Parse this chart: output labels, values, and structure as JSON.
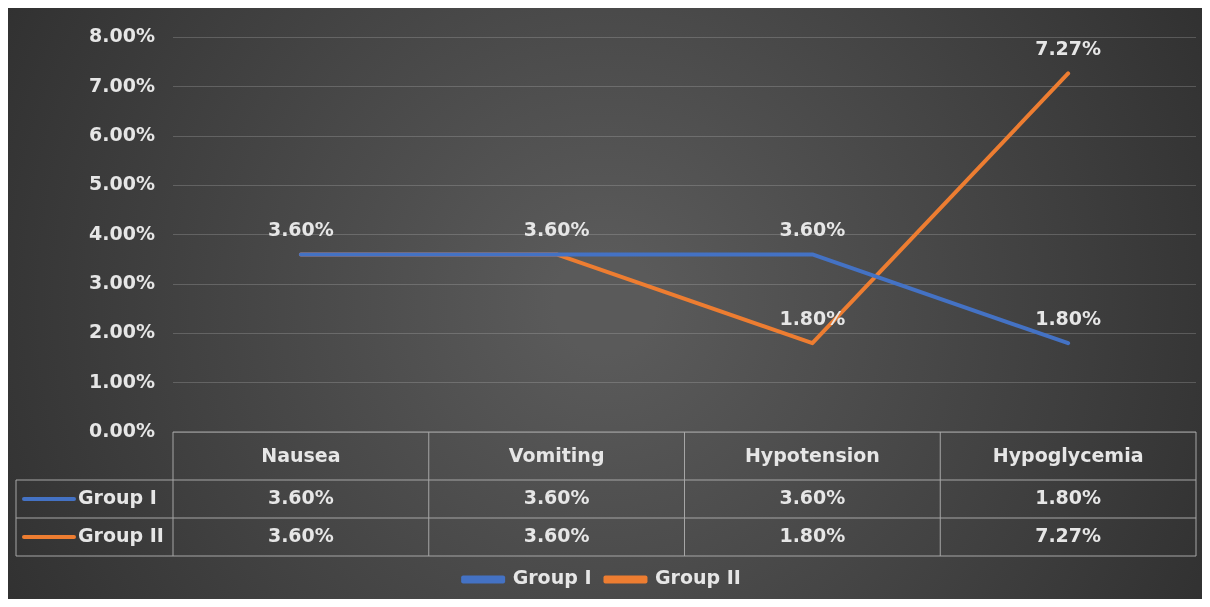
{
  "chart_data": {
    "type": "line",
    "categories": [
      "Nausea",
      "Vomiting",
      "Hypotension",
      "Hypoglycemia"
    ],
    "series": [
      {
        "name": "Group I",
        "color": "#4472c4",
        "values": [
          3.6,
          3.6,
          3.6,
          1.8
        ],
        "value_labels": [
          "3.60%",
          "3.60%",
          "3.60%",
          "1.80%"
        ]
      },
      {
        "name": "Group II",
        "color": "#ed7d31",
        "values": [
          3.6,
          3.6,
          1.8,
          7.27
        ],
        "value_labels": [
          "3.60%",
          "3.60%",
          "1.80%",
          "7.27%"
        ]
      }
    ],
    "ylim": [
      0,
      8
    ],
    "yticks": [
      {
        "value": 0,
        "label": "0.00%"
      },
      {
        "value": 1,
        "label": "1.00%"
      },
      {
        "value": 2,
        "label": "2.00%"
      },
      {
        "value": 3,
        "label": "3.00%"
      },
      {
        "value": 4,
        "label": "4.00%"
      },
      {
        "value": 5,
        "label": "5.00%"
      },
      {
        "value": 6,
        "label": "6.00%"
      },
      {
        "value": 7,
        "label": "7.00%"
      },
      {
        "value": 8,
        "label": "8.00%"
      }
    ],
    "grid": "y",
    "legend": "bottom",
    "marker": "none",
    "line_style": "solid"
  }
}
